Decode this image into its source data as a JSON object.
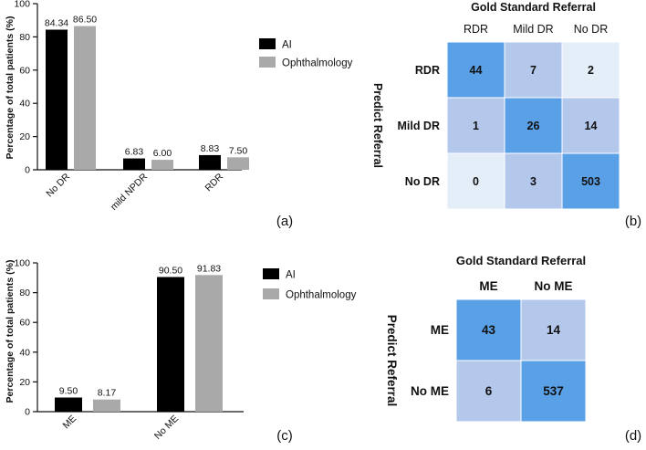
{
  "chart_data": [
    {
      "type": "bar",
      "panel": "(a)",
      "ylabel": "Percentage of total patients (%)",
      "ylim": [
        0,
        100
      ],
      "yticks": [
        0,
        20,
        40,
        60,
        80,
        100
      ],
      "categories": [
        "No DR",
        "mild NPDR",
        "RDR"
      ],
      "series": [
        {
          "name": "AI",
          "color": "#000000",
          "values": [
            84.34,
            6.83,
            8.83
          ],
          "labels": [
            "84.34",
            "6.83",
            "8.83"
          ]
        },
        {
          "name": "Ophthalmology",
          "color": "#a9a9a9",
          "values": [
            86.5,
            6.0,
            7.5
          ],
          "labels": [
            "86.50",
            "6.00",
            "7.50"
          ]
        }
      ]
    },
    {
      "type": "heatmap",
      "panel": "(b)",
      "title": "Gold Standard Referral",
      "ylabel": "Predict Referral",
      "columns": [
        "RDR",
        "Mild DR",
        "No DR"
      ],
      "rows": [
        "RDR",
        "Mild DR",
        "No DR"
      ],
      "values": [
        [
          44,
          7,
          2
        ],
        [
          1,
          26,
          14
        ],
        [
          0,
          3,
          503
        ]
      ],
      "colors": [
        [
          "#5aa0e6",
          "#b4c8ec",
          "#e4eef8"
        ],
        [
          "#b4c8ec",
          "#5aa0e6",
          "#b4c8ec"
        ],
        [
          "#e4eef8",
          "#b4c8ec",
          "#5aa0e6"
        ]
      ]
    },
    {
      "type": "bar",
      "panel": "(c)",
      "ylabel": "Percentage of total patients (%)",
      "ylim": [
        0,
        100
      ],
      "yticks": [
        0,
        20,
        40,
        60,
        80,
        100
      ],
      "categories": [
        "ME",
        "No ME"
      ],
      "series": [
        {
          "name": "AI",
          "color": "#000000",
          "values": [
            9.5,
            90.5
          ],
          "labels": [
            "9.50",
            "90.50"
          ]
        },
        {
          "name": "Ophthalmology",
          "color": "#a9a9a9",
          "values": [
            8.17,
            91.83
          ],
          "labels": [
            "8.17",
            "91.83"
          ]
        }
      ]
    },
    {
      "type": "heatmap",
      "panel": "(d)",
      "title": "Gold Standard Referral",
      "ylabel": "Predict Referral",
      "columns": [
        "ME",
        "No ME"
      ],
      "rows": [
        "ME",
        "No ME"
      ],
      "values": [
        [
          43,
          14
        ],
        [
          6,
          537
        ]
      ],
      "colors": [
        [
          "#5aa0e6",
          "#b4c8ec"
        ],
        [
          "#b4c8ec",
          "#5aa0e6"
        ]
      ]
    }
  ]
}
